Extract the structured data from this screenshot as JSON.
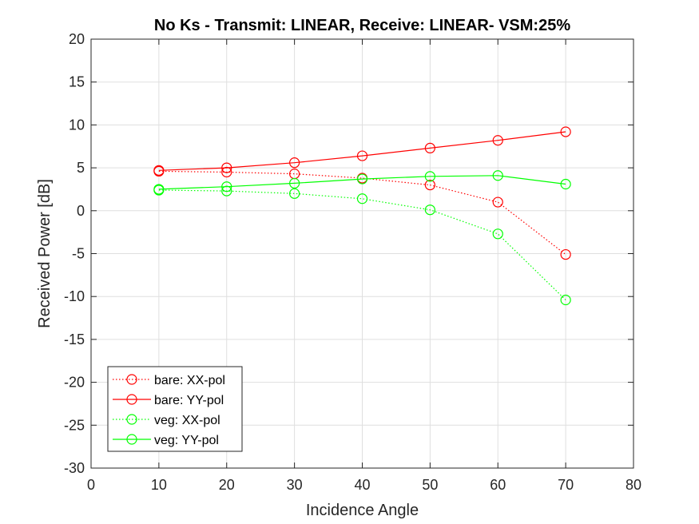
{
  "chart_data": {
    "type": "line",
    "title": "No Ks - Transmit: LINEAR, Receive: LINEAR- VSM:25%",
    "xlabel": "Incidence Angle",
    "ylabel": "Received Power [dB]",
    "xlim": [
      0,
      80
    ],
    "ylim": [
      -30,
      20
    ],
    "xticks": [
      "0",
      "10",
      "20",
      "30",
      "40",
      "50",
      "60",
      "70",
      "80"
    ],
    "yticks": [
      "20",
      "15",
      "10",
      "5",
      "0",
      "-5",
      "-10",
      "-15",
      "-20",
      "-25",
      "-30"
    ],
    "grid": true,
    "legend_location": "bottom-left",
    "x": [
      10,
      20,
      30,
      40,
      50,
      60,
      70
    ],
    "series": [
      {
        "name": "bare: XX-pol",
        "color": "#ff0000",
        "line_style": "dotted",
        "marker": "circle",
        "values": [
          4.6,
          4.5,
          4.3,
          3.8,
          3.0,
          1.0,
          -5.1
        ]
      },
      {
        "name": "bare: YY-pol",
        "color": "#ff0000",
        "line_style": "solid",
        "marker": "circle",
        "values": [
          4.7,
          5.0,
          5.6,
          6.4,
          7.3,
          8.2,
          9.2
        ]
      },
      {
        "name": "veg: XX-pol",
        "color": "#00ff00",
        "line_style": "dotted",
        "marker": "circle",
        "values": [
          2.4,
          2.3,
          2.0,
          1.4,
          0.1,
          -2.7,
          -10.4
        ]
      },
      {
        "name": "veg: YY-pol",
        "color": "#00ff00",
        "line_style": "solid",
        "marker": "circle",
        "values": [
          2.5,
          2.8,
          3.2,
          3.7,
          4.0,
          4.1,
          3.1
        ]
      }
    ]
  }
}
